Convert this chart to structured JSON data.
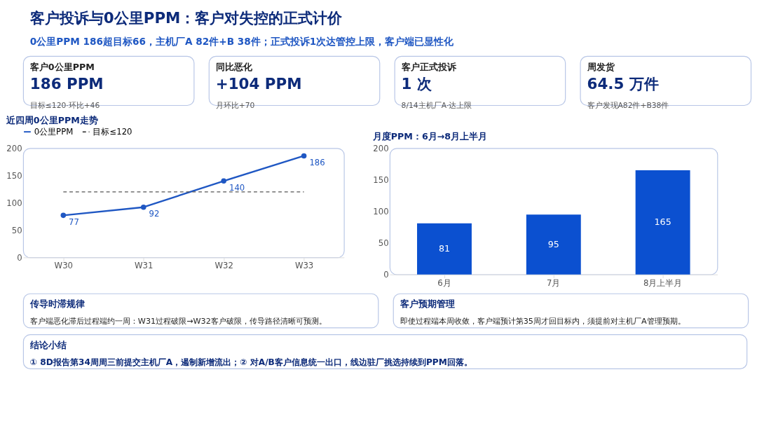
{
  "chart_data": [
    {
      "type": "other",
      "title": "客户投诉与0公里PPM：客户对失控的正式计价",
      "subtitle": "0公里PPM 186超目标66，主机厂A 82件+B 38件；正式投诉1次达管控上限，客户端已显性化"
    },
    {
      "type": "other",
      "title": "客户0公里PPM",
      "annotations": [
        "186 PPM",
        "目标≤120·环比+46"
      ]
    },
    {
      "type": "other",
      "title": "同比恶化",
      "annotations": [
        "+104 PPM",
        "月环比+70"
      ]
    },
    {
      "type": "other",
      "title": "客户正式投诉",
      "annotations": [
        "1 次",
        "8/14主机厂A·达上限"
      ]
    },
    {
      "type": "other",
      "title": "周发货",
      "annotations": [
        "64.5 万件",
        "客户发现A82件+B38件"
      ]
    },
    {
      "type": "line",
      "title": "近四周0公里PPM走势",
      "categories": [
        "W30",
        "W31",
        "W32",
        "W33"
      ],
      "series": [
        {
          "name": "0公里PPM",
          "color": "#1f57c3",
          "line_style": "solid",
          "values": [
            77,
            92,
            140,
            186
          ]
        }
      ],
      "ref_lines": [
        {
          "axis": "y",
          "value": 120,
          "label": "目标≤120",
          "color": "#555555",
          "line_style": "dashed"
        }
      ],
      "ylim": [
        0,
        200
      ],
      "yticks": [
        0,
        50,
        100,
        150,
        200
      ],
      "data_labels": true,
      "marker": "circle",
      "legend": "top",
      "grid": false
    },
    {
      "type": "bar",
      "title": "月度PPM：6月→8月上半月",
      "categories": [
        "6月",
        "7月",
        "8月上半月"
      ],
      "values": [
        81,
        95,
        165
      ],
      "color": "#0b50d0",
      "ylim": [
        0,
        200
      ],
      "yticks": [
        0,
        50,
        100,
        150,
        200
      ],
      "data_labels": true,
      "grid": false
    },
    {
      "type": "other",
      "title": "传导时滞规律",
      "annotations": [
        "客户端恶化滞后过程端约一周：W31过程破限→W32客户破限，传导路径清晰可预测。"
      ]
    },
    {
      "type": "other",
      "title": "客户预期管理",
      "annotations": [
        "即使过程端本周收敛，客户端预计第35周才回目标内，须提前对主机厂A管理预期。"
      ]
    },
    {
      "type": "other",
      "title": "结论小结",
      "annotations": [
        "① 8D报告第34周周三前提交主机厂A，遏制新增流出；② 对A/B客户信息统一出口，线边驻厂挑选持续到PPM回落。"
      ]
    }
  ]
}
